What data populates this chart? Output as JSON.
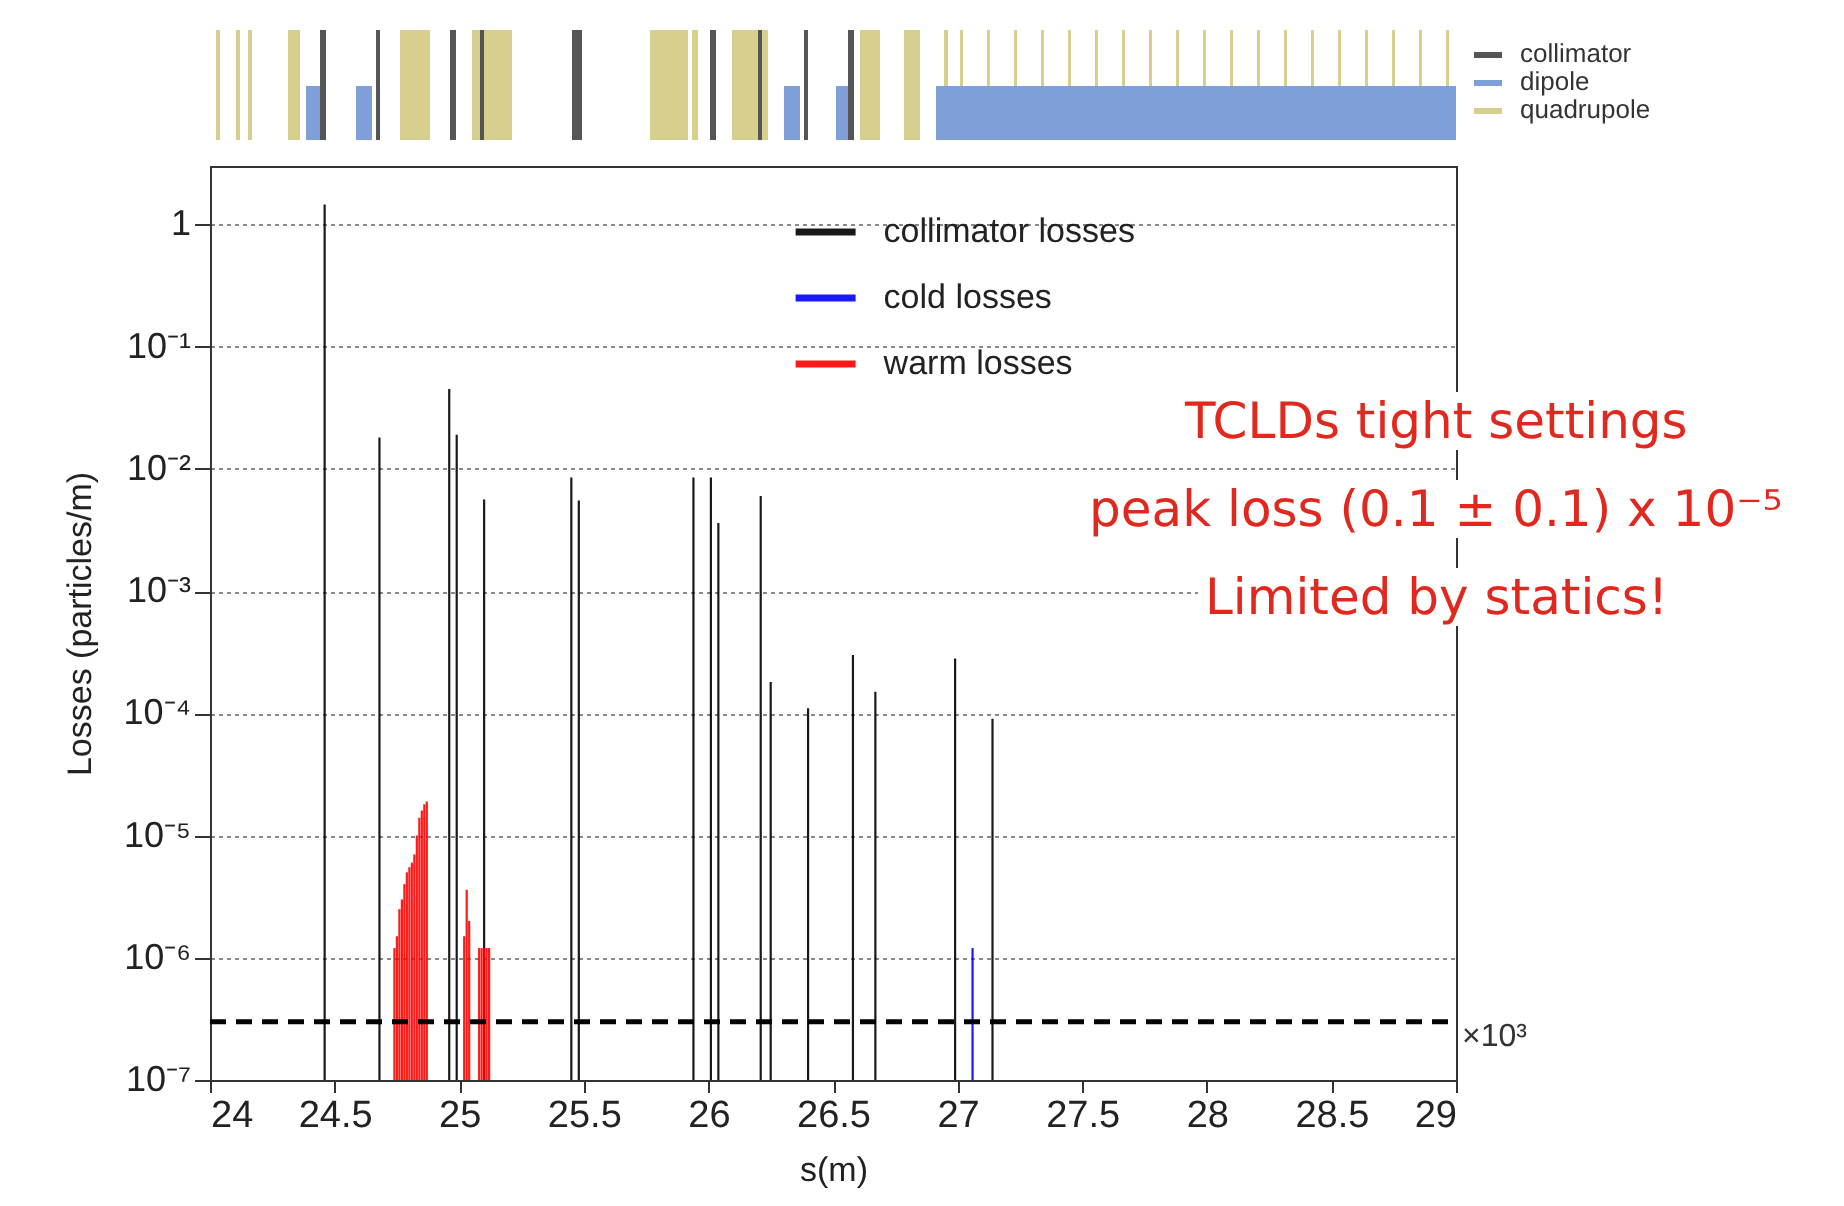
{
  "chart_data": {
    "type": "bar",
    "xlabel": "s(m)",
    "ylabel": "Losses (particles/m)",
    "xlim": [
      24,
      29
    ],
    "xticks": [
      24,
      24.5,
      25,
      25.5,
      26,
      26.5,
      27,
      27.5,
      28,
      28.5,
      29
    ],
    "ylim": [
      1e-07,
      3
    ],
    "yticks": [
      {
        "value": 1e-07,
        "label": "10⁻⁷"
      },
      {
        "value": 1e-06,
        "label": "10⁻⁶"
      },
      {
        "value": 1e-05,
        "label": "10⁻⁵"
      },
      {
        "value": 0.0001,
        "label": "10⁻⁴"
      },
      {
        "value": 0.001,
        "label": "10⁻³"
      },
      {
        "value": 0.01,
        "label": "10⁻²"
      },
      {
        "value": 0.1,
        "label": "10⁻¹"
      },
      {
        "value": 1,
        "label": "1"
      }
    ],
    "log": "y",
    "grid": "y",
    "legend": "top right",
    "series": [
      {
        "name": "collimator losses",
        "color": "#000000",
        "x": [
          24.46,
          24.68,
          24.96,
          24.99,
          25.1,
          25.45,
          25.48,
          25.94,
          26.01,
          26.04,
          26.21,
          26.25,
          26.4,
          26.58,
          26.67,
          26.99,
          27.14
        ],
        "values": [
          1.45,
          0.018,
          0.045,
          0.019,
          0.0056,
          0.0085,
          0.0055,
          0.0085,
          0.0085,
          0.0036,
          0.006,
          0.00018,
          0.00011,
          0.0003,
          0.00015,
          0.00028,
          9e-05
        ]
      },
      {
        "name": "cold losses",
        "color": "#0000ff",
        "x": [
          27.06
        ],
        "values": [
          1.2e-06
        ]
      },
      {
        "name": "warm losses",
        "color": "#ff0000",
        "x": [
          24.74,
          24.75,
          24.76,
          24.77,
          24.78,
          24.79,
          24.8,
          24.81,
          24.82,
          24.83,
          24.84,
          24.85,
          24.86,
          24.87,
          25.02,
          25.03,
          25.04,
          25.08,
          25.09,
          25.1,
          25.11,
          25.12
        ],
        "values": [
          1.2e-06,
          1.5e-06,
          2.5e-06,
          3e-06,
          4e-06,
          5e-06,
          5.5e-06,
          6e-06,
          7e-06,
          1e-05,
          1.4e-05,
          1.6e-05,
          1.8e-05,
          1.9e-05,
          1.5e-06,
          3.6e-06,
          2e-06,
          1.2e-06,
          1.2e-06,
          1.2e-06,
          1.2e-06,
          1.2e-06
        ]
      }
    ],
    "ref_lines": [
      {
        "axis": "y",
        "value": 3e-07,
        "color": "#000000",
        "line_style": "dashed"
      }
    ],
    "annotations": [
      "TCLDs tight settings",
      "peak loss (0.1 ± 0.1) x 10⁻⁵",
      "Limited by statics!",
      "×10³",
      "collimator",
      "dipole",
      "quadrupole"
    ]
  }
}
